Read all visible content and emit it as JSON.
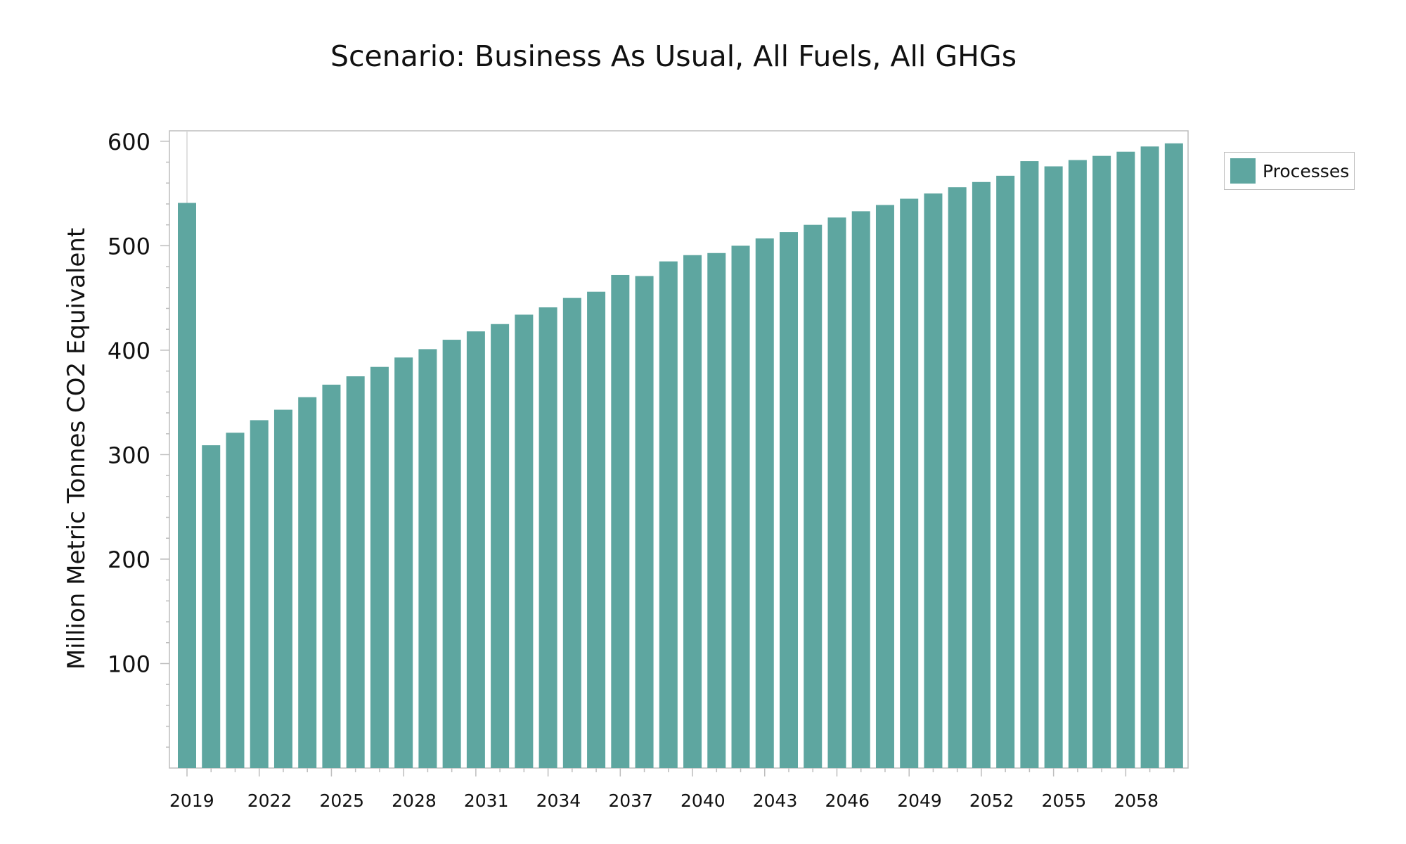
{
  "chart_data": {
    "type": "bar",
    "title": "Scenario: Business As Usual, All Fuels, All GHGs",
    "xlabel": "",
    "ylabel": "Million Metric Tonnes CO2 Equivalent",
    "ylim": [
      0,
      610
    ],
    "yticks": [
      100,
      200,
      300,
      400,
      500,
      600
    ],
    "x_tick_labels": [
      "2019",
      "2022",
      "2025",
      "2028",
      "2031",
      "2034",
      "2037",
      "2040",
      "2043",
      "2046",
      "2049",
      "2052",
      "2055",
      "2058"
    ],
    "categories": [
      2019,
      2020,
      2021,
      2022,
      2023,
      2024,
      2025,
      2026,
      2027,
      2028,
      2029,
      2030,
      2031,
      2032,
      2033,
      2034,
      2035,
      2036,
      2037,
      2038,
      2039,
      2040,
      2041,
      2042,
      2043,
      2044,
      2045,
      2046,
      2047,
      2048,
      2049,
      2050,
      2051,
      2052,
      2053,
      2054,
      2055,
      2056,
      2057,
      2058,
      2059,
      2060
    ],
    "series": [
      {
        "name": "Processes",
        "color": "#5ea6a0",
        "values": [
          541,
          309,
          321,
          333,
          343,
          355,
          367,
          375,
          384,
          393,
          401,
          410,
          418,
          425,
          434,
          441,
          450,
          456,
          472,
          471,
          485,
          491,
          493,
          500,
          507,
          513,
          520,
          527,
          533,
          539,
          545,
          550,
          556,
          561,
          567,
          581,
          576,
          582,
          586,
          590,
          595,
          598
        ]
      }
    ],
    "legend": {
      "position": "top-right outside"
    },
    "grid": false
  }
}
